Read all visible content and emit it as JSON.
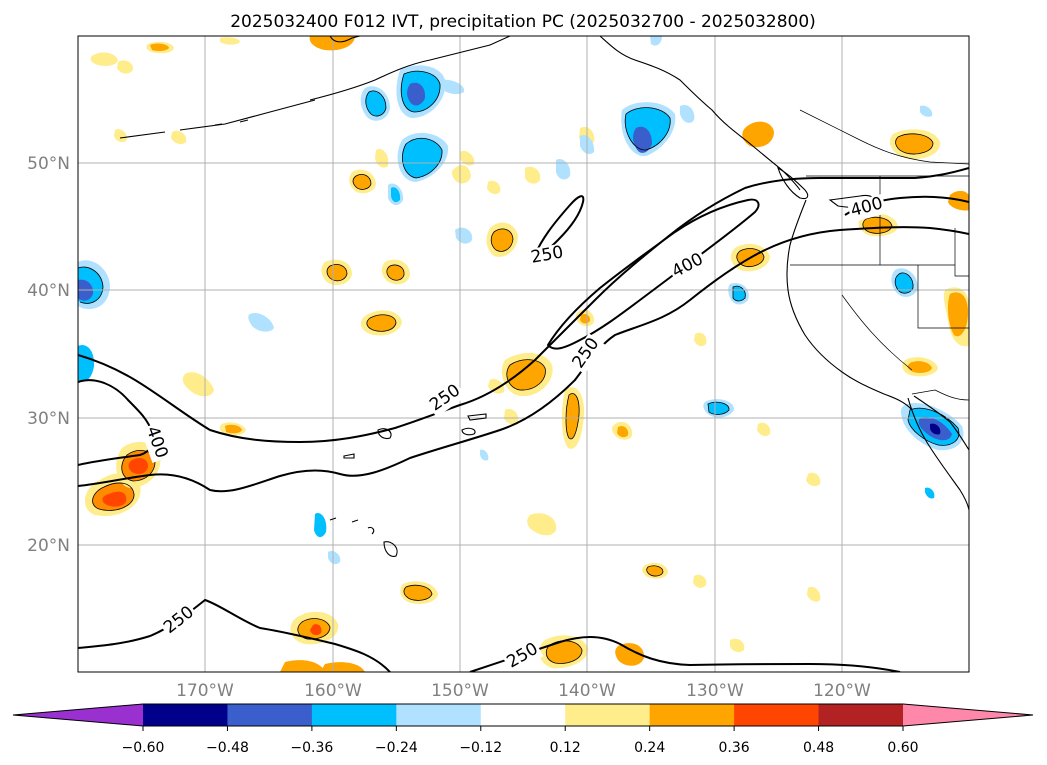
{
  "title": "2025032400 F012 IVT, precipitation PC (2025032700 - 2025032800)",
  "lat_labels": [
    "50°N",
    "40°N",
    "30°N",
    "20°N"
  ],
  "lon_labels": [
    "170°W",
    "160°W",
    "150°W",
    "140°W",
    "130°W",
    "120°W"
  ],
  "ivt_contour_labels": [
    "250",
    "250",
    "250",
    "250",
    "250",
    "400",
    "400",
    "400"
  ],
  "colorbar": {
    "ticks": [
      "−0.60",
      "−0.48",
      "−0.36",
      "−0.24",
      "−0.12",
      "0.12",
      "0.24",
      "0.36",
      "0.48",
      "0.60"
    ],
    "colors": [
      "#9b30d0",
      "#00008b",
      "#3a5fcd",
      "#00bfff",
      "#b0e2ff",
      "#ffffff",
      "#ffec8b",
      "#ffa500",
      "#ff4500",
      "#b22222",
      "#ff88aa"
    ]
  },
  "colors": {
    "coast": "#000000",
    "grid": "#b0b0b0",
    "ivt_contour": "#000000"
  }
}
